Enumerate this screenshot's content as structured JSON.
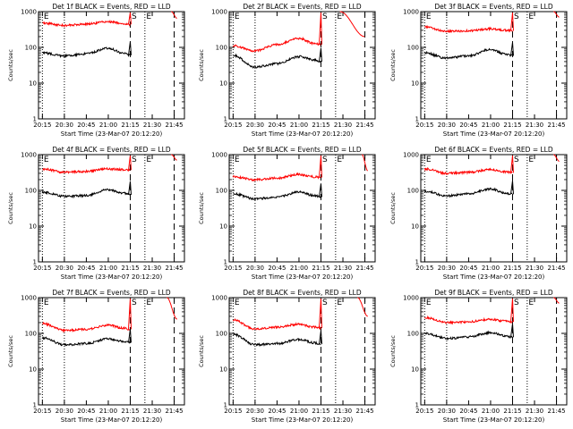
{
  "chart_data": [
    {
      "id": "det1",
      "title": "Det 1f BLACK = Events, RED = LLD",
      "type": "line",
      "xlabel": "Start Time (23-Mar-07 20:12:20)",
      "ylabel": "Counts/sec",
      "ylim": [
        1,
        1000
      ],
      "yscale": "log",
      "y_ticks": [
        1,
        10,
        100,
        1000
      ],
      "x_ticks": [
        "20:15",
        "20:30",
        "20:45",
        "21:00",
        "21:15",
        "21:30",
        "21:45"
      ],
      "markers": [
        {
          "label": "E",
          "style": "dotted",
          "x": "20:15"
        },
        {
          "label": "",
          "style": "dotted",
          "x": "20:30"
        },
        {
          "label": "S",
          "style": "dashed",
          "x": "21:15"
        },
        {
          "label": "E",
          "style": "dotted",
          "x": "21:25"
        },
        {
          "label": "",
          "style": "dashed",
          "x": "21:45"
        }
      ],
      "series": [
        {
          "color": "#ff0000",
          "x": [
            "20:15",
            "20:30",
            "20:45",
            "21:00",
            "21:10",
            "21:15"
          ],
          "values": [
            480,
            410,
            450,
            520,
            470,
            440
          ]
        },
        {
          "color": "#000000",
          "x": [
            "20:15",
            "20:30",
            "20:45",
            "21:00",
            "21:10",
            "21:15"
          ],
          "values": [
            70,
            58,
            66,
            95,
            70,
            60
          ]
        },
        {
          "color": "#ff0000",
          "x": [
            "21:43",
            "21:47"
          ],
          "values": [
            1000,
            650
          ]
        }
      ]
    },
    {
      "id": "det2",
      "title": "Det 2f BLACK = Events, RED = LLD",
      "type": "line",
      "xlabel": "Start Time (23-Mar-07 20:12:20)",
      "ylabel": "Counts/sec",
      "ylim": [
        1,
        1000
      ],
      "yscale": "log",
      "y_ticks": [
        1,
        10,
        100,
        1000
      ],
      "x_ticks": [
        "20:15",
        "20:30",
        "20:45",
        "21:00",
        "21:15",
        "21:30",
        "21:45"
      ],
      "markers": [
        {
          "label": "E",
          "style": "dotted",
          "x": "20:15"
        },
        {
          "label": "",
          "style": "dotted",
          "x": "20:30"
        },
        {
          "label": "S",
          "style": "dashed",
          "x": "21:15"
        },
        {
          "label": "E",
          "style": "dotted",
          "x": "21:25"
        },
        {
          "label": "",
          "style": "dashed",
          "x": "21:45"
        }
      ],
      "series": [
        {
          "color": "#ff0000",
          "x": [
            "20:15",
            "20:30",
            "20:45",
            "21:00",
            "21:10",
            "21:15"
          ],
          "values": [
            110,
            80,
            120,
            180,
            130,
            120
          ]
        },
        {
          "color": "#000000",
          "x": [
            "20:15",
            "20:30",
            "20:45",
            "21:00",
            "21:10",
            "21:15"
          ],
          "values": [
            60,
            28,
            35,
            55,
            45,
            40
          ]
        },
        {
          "color": "#ff0000",
          "x": [
            "21:28",
            "21:45"
          ],
          "values": [
            1000,
            200
          ]
        }
      ]
    },
    {
      "id": "det3",
      "title": "Det 3f BLACK = Events, RED = LLD",
      "type": "line",
      "xlabel": "Start Time (23-Mar-07 20:12:20)",
      "ylabel": "Counts/sec",
      "ylim": [
        1,
        1000
      ],
      "yscale": "log",
      "y_ticks": [
        1,
        10,
        100,
        1000
      ],
      "x_ticks": [
        "20:15",
        "20:30",
        "20:45",
        "21:00",
        "21:15",
        "21:30",
        "21:45"
      ],
      "markers": [
        {
          "label": "E",
          "style": "dotted",
          "x": "20:15"
        },
        {
          "label": "",
          "style": "dotted",
          "x": "20:30"
        },
        {
          "label": "S",
          "style": "dashed",
          "x": "21:15"
        },
        {
          "label": "E",
          "style": "dotted",
          "x": "21:25"
        },
        {
          "label": "",
          "style": "dashed",
          "x": "21:45"
        }
      ],
      "series": [
        {
          "color": "#ff0000",
          "x": [
            "20:15",
            "20:30",
            "20:45",
            "21:00",
            "21:10",
            "21:15"
          ],
          "values": [
            380,
            280,
            290,
            330,
            300,
            290
          ]
        },
        {
          "color": "#000000",
          "x": [
            "20:15",
            "20:30",
            "20:45",
            "21:00",
            "21:10",
            "21:15"
          ],
          "values": [
            70,
            50,
            58,
            88,
            65,
            58
          ]
        },
        {
          "color": "#ff0000",
          "x": [
            "21:43",
            "21:47"
          ],
          "values": [
            1000,
            700
          ]
        }
      ]
    },
    {
      "id": "det4",
      "title": "Det 4f BLACK = Events, RED = LLD",
      "type": "line",
      "xlabel": "Start Time (23-Mar-07 20:12:20)",
      "ylabel": "Counts/sec",
      "ylim": [
        1,
        1000
      ],
      "yscale": "log",
      "y_ticks": [
        1,
        10,
        100,
        1000
      ],
      "x_ticks": [
        "20:15",
        "20:30",
        "20:45",
        "21:00",
        "21:15",
        "21:30",
        "21:45"
      ],
      "markers": [
        {
          "label": "E",
          "style": "dotted",
          "x": "20:15"
        },
        {
          "label": "",
          "style": "dotted",
          "x": "20:30"
        },
        {
          "label": "S",
          "style": "dashed",
          "x": "21:15"
        },
        {
          "label": "E",
          "style": "dotted",
          "x": "21:25"
        },
        {
          "label": "",
          "style": "dashed",
          "x": "21:45"
        }
      ],
      "series": [
        {
          "color": "#ff0000",
          "x": [
            "20:15",
            "20:30",
            "20:45",
            "21:00",
            "21:10",
            "21:15"
          ],
          "values": [
            400,
            320,
            340,
            400,
            380,
            370
          ]
        },
        {
          "color": "#000000",
          "x": [
            "20:15",
            "20:30",
            "20:45",
            "21:00",
            "21:10",
            "21:15"
          ],
          "values": [
            90,
            68,
            72,
            105,
            85,
            75
          ]
        },
        {
          "color": "#ff0000",
          "x": [
            "21:43",
            "21:47"
          ],
          "values": [
            1000,
            700
          ]
        }
      ]
    },
    {
      "id": "det5",
      "title": "Det 5f BLACK = Events, RED = LLD",
      "type": "line",
      "xlabel": "Start Time (23-Mar-07 20:12:20)",
      "ylabel": "Counts/sec",
      "ylim": [
        1,
        1000
      ],
      "yscale": "log",
      "y_ticks": [
        1,
        10,
        100,
        1000
      ],
      "x_ticks": [
        "20:15",
        "20:30",
        "20:45",
        "21:00",
        "21:15",
        "21:30",
        "21:45"
      ],
      "markers": [
        {
          "label": "E",
          "style": "dotted",
          "x": "20:15"
        },
        {
          "label": "",
          "style": "dotted",
          "x": "20:30"
        },
        {
          "label": "S",
          "style": "dashed",
          "x": "21:15"
        },
        {
          "label": "E",
          "style": "dotted",
          "x": "21:25"
        },
        {
          "label": "",
          "style": "dashed",
          "x": "21:45"
        }
      ],
      "series": [
        {
          "color": "#ff0000",
          "x": [
            "20:15",
            "20:30",
            "20:45",
            "21:00",
            "21:10",
            "21:15"
          ],
          "values": [
            240,
            200,
            220,
            280,
            240,
            230
          ]
        },
        {
          "color": "#000000",
          "x": [
            "20:15",
            "20:30",
            "20:45",
            "21:00",
            "21:10",
            "21:15"
          ],
          "values": [
            80,
            58,
            65,
            90,
            72,
            65
          ]
        },
        {
          "color": "#ff0000",
          "x": [
            "21:43",
            "21:47"
          ],
          "values": [
            1000,
            350
          ]
        }
      ]
    },
    {
      "id": "det6",
      "title": "Det 6f BLACK = Events, RED = LLD",
      "type": "line",
      "xlabel": "Start Time (23-Mar-07 20:12:20)",
      "ylabel": "Counts/sec",
      "ylim": [
        1,
        1000
      ],
      "yscale": "log",
      "y_ticks": [
        1,
        10,
        100,
        1000
      ],
      "x_ticks": [
        "20:15",
        "20:30",
        "20:45",
        "21:00",
        "21:15",
        "21:30",
        "21:45"
      ],
      "markers": [
        {
          "label": "E",
          "style": "dotted",
          "x": "20:15"
        },
        {
          "label": "",
          "style": "dotted",
          "x": "20:30"
        },
        {
          "label": "S",
          "style": "dashed",
          "x": "21:15"
        },
        {
          "label": "E",
          "style": "dotted",
          "x": "21:25"
        },
        {
          "label": "",
          "style": "dashed",
          "x": "21:45"
        }
      ],
      "series": [
        {
          "color": "#ff0000",
          "x": [
            "20:15",
            "20:30",
            "20:45",
            "21:00",
            "21:10",
            "21:15"
          ],
          "values": [
            400,
            300,
            320,
            380,
            330,
            310
          ]
        },
        {
          "color": "#000000",
          "x": [
            "20:15",
            "20:30",
            "20:45",
            "21:00",
            "21:10",
            "21:15"
          ],
          "values": [
            95,
            70,
            80,
            110,
            85,
            78
          ]
        },
        {
          "color": "#ff0000",
          "x": [
            "21:43",
            "21:47"
          ],
          "values": [
            1000,
            650
          ]
        }
      ]
    },
    {
      "id": "det7",
      "title": "Det 7f BLACK = Events, RED = LLD",
      "type": "line",
      "xlabel": "Start Time (23-Mar-07 20:12:20)",
      "ylabel": "Counts/sec",
      "ylim": [
        1,
        1000
      ],
      "yscale": "log",
      "y_ticks": [
        1,
        10,
        100,
        1000
      ],
      "x_ticks": [
        "20:15",
        "20:30",
        "20:45",
        "21:00",
        "21:15",
        "21:30",
        "21:45"
      ],
      "markers": [
        {
          "label": "E",
          "style": "dotted",
          "x": "20:15"
        },
        {
          "label": "",
          "style": "dotted",
          "x": "20:30"
        },
        {
          "label": "S",
          "style": "dashed",
          "x": "21:15"
        },
        {
          "label": "E",
          "style": "dotted",
          "x": "21:25"
        },
        {
          "label": "",
          "style": "dashed",
          "x": "21:45"
        }
      ],
      "series": [
        {
          "color": "#ff0000",
          "x": [
            "20:15",
            "20:30",
            "20:45",
            "21:00",
            "21:10",
            "21:15"
          ],
          "values": [
            190,
            120,
            130,
            170,
            140,
            130
          ]
        },
        {
          "color": "#000000",
          "x": [
            "20:15",
            "20:30",
            "20:45",
            "21:00",
            "21:10",
            "21:15"
          ],
          "values": [
            75,
            48,
            52,
            70,
            60,
            55
          ]
        },
        {
          "color": "#ff0000",
          "x": [
            "21:40",
            "21:47"
          ],
          "values": [
            1000,
            250
          ]
        }
      ]
    },
    {
      "id": "det8",
      "title": "Det 8f BLACK = Events, RED = LLD",
      "type": "line",
      "xlabel": "Start Time (23-Mar-07 20:12:20)",
      "ylabel": "Counts/sec",
      "ylim": [
        1,
        1000
      ],
      "yscale": "log",
      "y_ticks": [
        1,
        10,
        100,
        1000
      ],
      "x_ticks": [
        "20:15",
        "20:30",
        "20:45",
        "21:00",
        "21:15",
        "21:30",
        "21:45"
      ],
      "markers": [
        {
          "label": "E",
          "style": "dotted",
          "x": "20:15"
        },
        {
          "label": "",
          "style": "dotted",
          "x": "20:30"
        },
        {
          "label": "S",
          "style": "dashed",
          "x": "21:15"
        },
        {
          "label": "E",
          "style": "dotted",
          "x": "21:25"
        },
        {
          "label": "",
          "style": "dashed",
          "x": "21:45"
        }
      ],
      "series": [
        {
          "color": "#ff0000",
          "x": [
            "20:15",
            "20:30",
            "20:45",
            "21:00",
            "21:10",
            "21:15"
          ],
          "values": [
            240,
            130,
            150,
            180,
            150,
            140
          ]
        },
        {
          "color": "#000000",
          "x": [
            "20:15",
            "20:30",
            "20:45",
            "21:00",
            "21:10",
            "21:15"
          ],
          "values": [
            95,
            48,
            52,
            68,
            55,
            50
          ]
        },
        {
          "color": "#ff0000",
          "x": [
            "21:40",
            "21:47"
          ],
          "values": [
            1000,
            300
          ]
        }
      ]
    },
    {
      "id": "det9",
      "title": "Det 9f BLACK = Events, RED = LLD",
      "type": "line",
      "xlabel": "Start Time (23-Mar-07 20:12:20)",
      "ylabel": "Counts/sec",
      "ylim": [
        1,
        1000
      ],
      "yscale": "log",
      "y_ticks": [
        1,
        10,
        100,
        1000
      ],
      "x_ticks": [
        "20:15",
        "20:30",
        "20:45",
        "21:00",
        "21:15",
        "21:30",
        "21:45"
      ],
      "markers": [
        {
          "label": "E",
          "style": "dotted",
          "x": "20:15"
        },
        {
          "label": "",
          "style": "dotted",
          "x": "20:30"
        },
        {
          "label": "S",
          "style": "dashed",
          "x": "21:15"
        },
        {
          "label": "E",
          "style": "dotted",
          "x": "21:25"
        },
        {
          "label": "",
          "style": "dashed",
          "x": "21:45"
        }
      ],
      "series": [
        {
          "color": "#ff0000",
          "x": [
            "20:15",
            "20:30",
            "20:45",
            "21:00",
            "21:10",
            "21:15"
          ],
          "values": [
            280,
            200,
            210,
            250,
            220,
            210
          ]
        },
        {
          "color": "#000000",
          "x": [
            "20:15",
            "20:30",
            "20:45",
            "21:00",
            "21:10",
            "21:15"
          ],
          "values": [
            100,
            72,
            80,
            105,
            85,
            78
          ]
        },
        {
          "color": "#ff0000",
          "x": [
            "21:43",
            "21:47"
          ],
          "values": [
            1000,
            700
          ]
        }
      ]
    }
  ]
}
